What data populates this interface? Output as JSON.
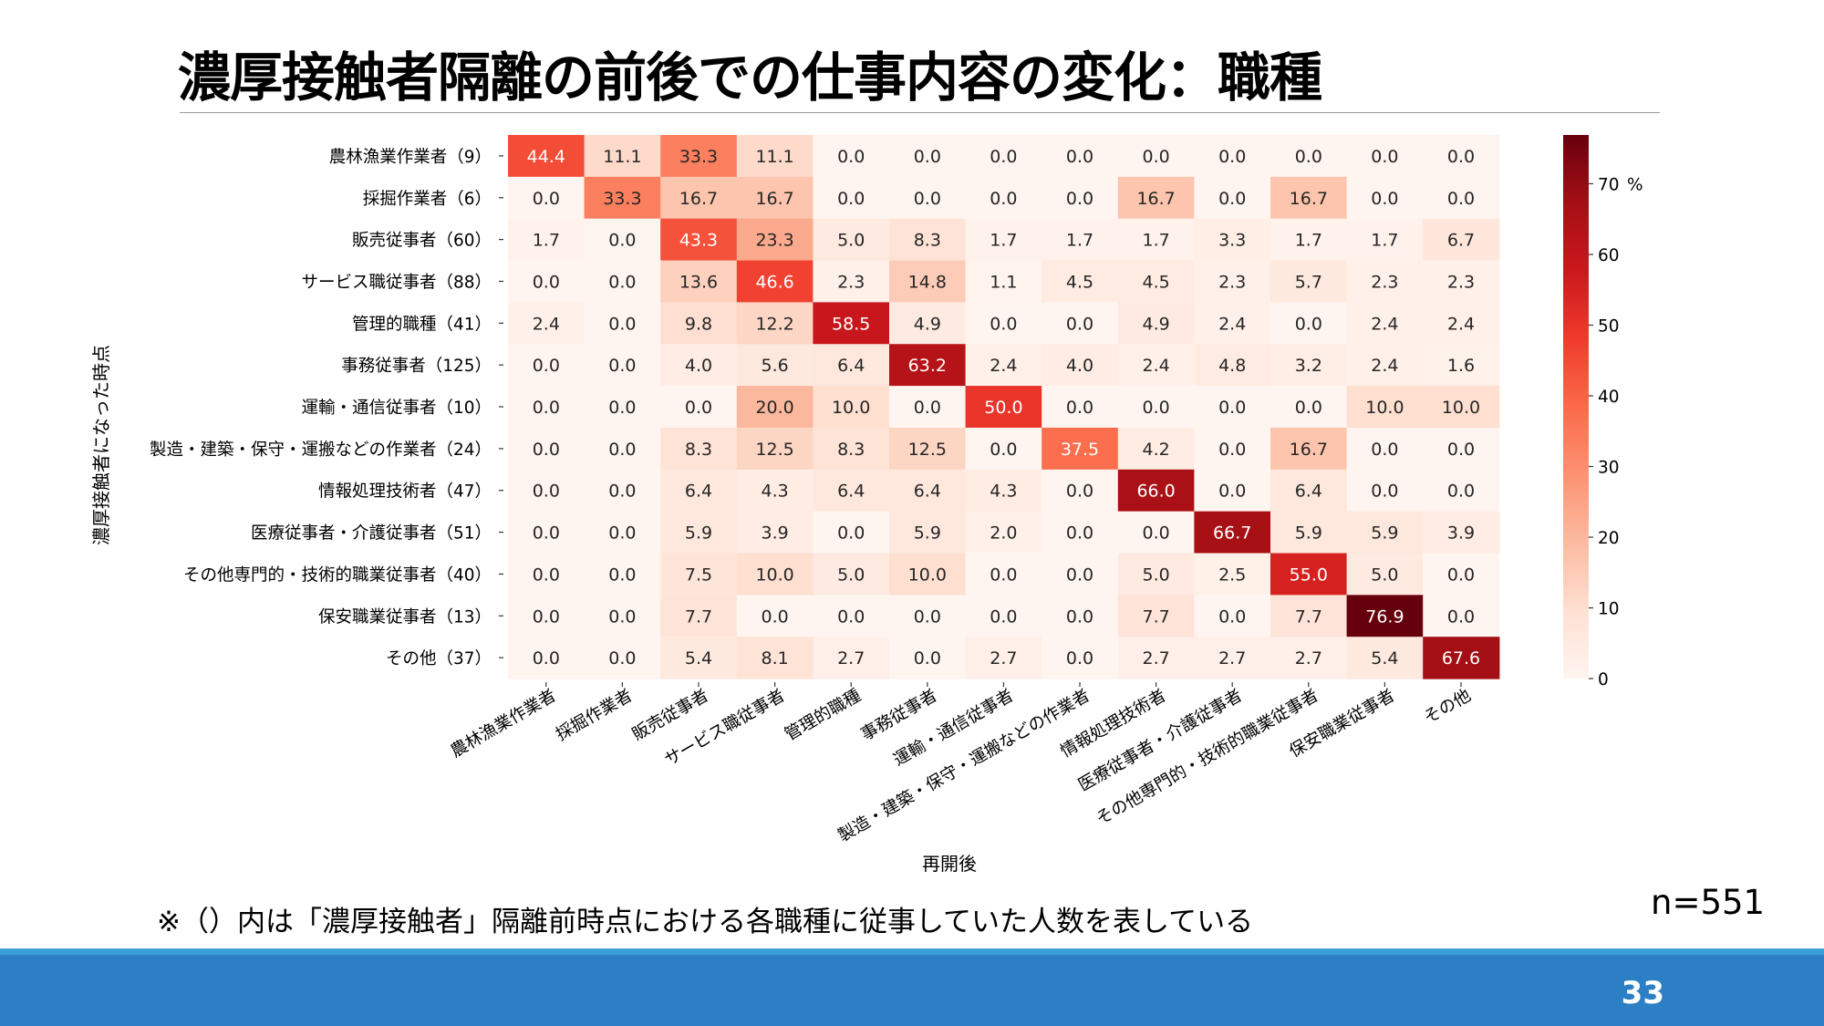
{
  "slide": {
    "title": "濃厚接触者隔離の前後での仕事内容の変化：職種",
    "note": "※（）内は「濃厚接触者」隔離前時点における各職種に従事していた人数を表している",
    "sample_size": "n=551",
    "page_number": "33"
  },
  "colors": {
    "footer_bar": "#2c7fc4",
    "footer_line": "#3ba0d8",
    "colormap": "Reds"
  },
  "chart_data": {
    "type": "heatmap",
    "ylabel": "濃厚接触者になった時点",
    "xlabel": "再開後",
    "y_categories": [
      "農林漁業作業者（9）",
      "採掘作業者（6）",
      "販売従事者（60）",
      "サービス職従事者（88）",
      "管理的職種（41）",
      "事務従事者（125）",
      "運輸・通信従事者（10）",
      "製造・建築・保守・運搬などの作業者（24）",
      "情報処理技術者（47）",
      "医療従事者・介護従事者（51）",
      "その他専門的・技術的職業従事者（40）",
      "保安職業従事者（13）",
      "その他（37）"
    ],
    "x_categories": [
      "農林漁業作業者",
      "採掘作業者",
      "販売従事者",
      "サービス職従事者",
      "管理的職種",
      "事務従事者",
      "運輸・通信従事者",
      "製造・建築・保守・運搬などの作業者",
      "情報処理技術者",
      "医療従事者・介護従事者",
      "その他専門的・技術的職業従事者",
      "保安職業従事者",
      "その他"
    ],
    "values": [
      [
        44.4,
        11.1,
        33.3,
        11.1,
        0.0,
        0.0,
        0.0,
        0.0,
        0.0,
        0.0,
        0.0,
        0.0,
        0.0
      ],
      [
        0.0,
        33.3,
        16.7,
        16.7,
        0.0,
        0.0,
        0.0,
        0.0,
        16.7,
        0.0,
        16.7,
        0.0,
        0.0
      ],
      [
        1.7,
        0.0,
        43.3,
        23.3,
        5.0,
        8.3,
        1.7,
        1.7,
        1.7,
        3.3,
        1.7,
        1.7,
        6.7
      ],
      [
        0.0,
        0.0,
        13.6,
        46.6,
        2.3,
        14.8,
        1.1,
        4.5,
        4.5,
        2.3,
        5.7,
        2.3,
        2.3
      ],
      [
        2.4,
        0.0,
        9.8,
        12.2,
        58.5,
        4.9,
        0.0,
        0.0,
        4.9,
        2.4,
        0.0,
        2.4,
        2.4
      ],
      [
        0.0,
        0.0,
        4.0,
        5.6,
        6.4,
        63.2,
        2.4,
        4.0,
        2.4,
        4.8,
        3.2,
        2.4,
        1.6
      ],
      [
        0.0,
        0.0,
        0.0,
        20.0,
        10.0,
        0.0,
        50.0,
        0.0,
        0.0,
        0.0,
        0.0,
        10.0,
        10.0
      ],
      [
        0.0,
        0.0,
        8.3,
        12.5,
        8.3,
        12.5,
        0.0,
        37.5,
        4.2,
        0.0,
        16.7,
        0.0,
        0.0
      ],
      [
        0.0,
        0.0,
        6.4,
        4.3,
        6.4,
        6.4,
        4.3,
        0.0,
        66.0,
        0.0,
        6.4,
        0.0,
        0.0
      ],
      [
        0.0,
        0.0,
        5.9,
        3.9,
        0.0,
        5.9,
        2.0,
        0.0,
        0.0,
        66.7,
        5.9,
        5.9,
        3.9
      ],
      [
        0.0,
        0.0,
        7.5,
        10.0,
        5.0,
        10.0,
        0.0,
        0.0,
        5.0,
        2.5,
        55.0,
        5.0,
        0.0
      ],
      [
        0.0,
        0.0,
        7.7,
        0.0,
        0.0,
        0.0,
        0.0,
        0.0,
        7.7,
        0.0,
        7.7,
        76.9,
        0.0
      ],
      [
        0.0,
        0.0,
        5.4,
        8.1,
        2.7,
        0.0,
        2.7,
        0.0,
        2.7,
        2.7,
        2.7,
        5.4,
        67.6
      ]
    ],
    "colorbar": {
      "range": [
        0,
        76.9
      ],
      "ticks": [
        0,
        10,
        20,
        30,
        40,
        50,
        60,
        70
      ],
      "unit": "%"
    },
    "value_format": "one decimal place"
  }
}
